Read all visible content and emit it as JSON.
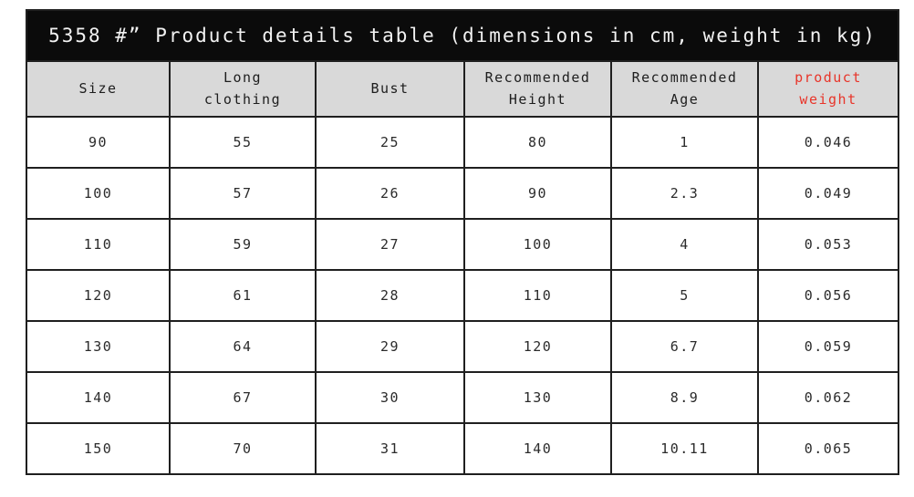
{
  "title": "5358 #” Product details table (dimensions in cm, weight in kg)",
  "colors": {
    "title_bg": "#0b0b0b",
    "title_text": "#f2f2f2",
    "header_bg": "#d9d9d9",
    "border": "#1f1f1f",
    "accent_red": "#e8352a",
    "page_bg": "#ffffff"
  },
  "chart_data": {
    "type": "table",
    "title": "5358 #” Product details table (dimensions in cm, weight in kg)",
    "columns": [
      "Size",
      "Long clothing",
      "Bust",
      "Recommended Height",
      "Recommended Age",
      "product weight"
    ],
    "units": {
      "dimensions": "cm",
      "weight": "kg"
    },
    "rows": [
      [
        "90",
        "55",
        "25",
        "80",
        "1",
        "0.046"
      ],
      [
        "100",
        "57",
        "26",
        "90",
        "2.3",
        "0.049"
      ],
      [
        "110",
        "59",
        "27",
        "100",
        "4",
        "0.053"
      ],
      [
        "120",
        "61",
        "28",
        "110",
        "5",
        "0.056"
      ],
      [
        "130",
        "64",
        "29",
        "120",
        "6.7",
        "0.059"
      ],
      [
        "140",
        "67",
        "30",
        "130",
        "8.9",
        "0.062"
      ],
      [
        "150",
        "70",
        "31",
        "140",
        "10.11",
        "0.065"
      ]
    ]
  }
}
